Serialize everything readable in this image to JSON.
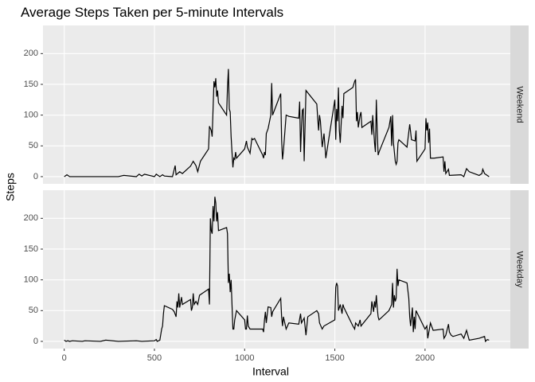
{
  "chart_data": {
    "type": "line",
    "title": "Average Steps Taken per 5-minute Intervals",
    "x_label": "Interval",
    "y_label": "Steps",
    "xlim": [
      -117.75,
      2472.75
    ],
    "xticks": [
      0,
      500,
      1000,
      1500,
      2000
    ],
    "ylim": [
      -11.7,
      245.7
    ],
    "yticks": [
      0,
      50,
      100,
      150,
      200
    ],
    "grid": true,
    "color": "#000000",
    "panels": [
      {
        "label": "Weekend",
        "x": [
          0,
          15,
          30,
          100,
          200,
          300,
          330,
          400,
          415,
          430,
          445,
          500,
          510,
          530,
          545,
          555,
          600,
          615,
          620,
          640,
          655,
          700,
          715,
          730,
          740,
          755,
          800,
          805,
          815,
          820,
          830,
          835,
          840,
          845,
          850,
          855,
          900,
          905,
          910,
          915,
          920,
          925,
          935,
          940,
          945,
          950,
          955,
          1000,
          1010,
          1015,
          1030,
          1040,
          1045,
          1055,
          1100,
          1105,
          1110,
          1115,
          1120,
          1130,
          1145,
          1150,
          1155,
          1200,
          1205,
          1210,
          1215,
          1230,
          1245,
          1300,
          1305,
          1310,
          1315,
          1320,
          1325,
          1330,
          1340,
          1400,
          1405,
          1410,
          1415,
          1420,
          1430,
          1440,
          1450,
          1500,
          1505,
          1510,
          1515,
          1520,
          1525,
          1530,
          1540,
          1545,
          1550,
          1600,
          1610,
          1615,
          1620,
          1625,
          1630,
          1640,
          1645,
          1650,
          1700,
          1705,
          1710,
          1720,
          1725,
          1730,
          1735,
          1740,
          1745,
          1800,
          1810,
          1815,
          1820,
          1825,
          1835,
          1840,
          1845,
          1850,
          1855,
          1900,
          1915,
          1925,
          1945,
          1950,
          1955,
          2000,
          2005,
          2010,
          2015,
          2020,
          2025,
          2030,
          2045,
          2050,
          2100,
          2105,
          2110,
          2115,
          2130,
          2135,
          2200,
          2215,
          2230,
          2245,
          2300,
          2315,
          2320,
          2330,
          2355
        ],
        "values": [
          0,
          3,
          0,
          0,
          0,
          0,
          2,
          0,
          4,
          1,
          4,
          0,
          4,
          0,
          3,
          1,
          0,
          18,
          3,
          8,
          5,
          17,
          25,
          18,
          8,
          25,
          45,
          82,
          75,
          65,
          155,
          145,
          160,
          130,
          140,
          120,
          100,
          145,
          175,
          110,
          105,
          65,
          15,
          30,
          28,
          40,
          30,
          45,
          58,
          48,
          38,
          62,
          60,
          62,
          35,
          30,
          40,
          35,
          70,
          78,
          100,
          152,
          100,
          135,
          60,
          28,
          42,
          100,
          98,
          95,
          122,
          40,
          80,
          108,
          110,
          25,
          140,
          118,
          95,
          75,
          100,
          90,
          48,
          70,
          30,
          125,
          60,
          110,
          90,
          145,
          75,
          55,
          115,
          95,
          135,
          145,
          155,
          158,
          90,
          105,
          80,
          100,
          105,
          80,
          90,
          68,
          100,
          55,
          40,
          125,
          75,
          35,
          40,
          80,
          98,
          50,
          100,
          55,
          25,
          20,
          25,
          55,
          60,
          48,
          85,
          60,
          58,
          75,
          25,
          45,
          95,
          75,
          88,
          55,
          78,
          30,
          30,
          30,
          32,
          8,
          25,
          5,
          12,
          2,
          3,
          0,
          13,
          8,
          2,
          5,
          12,
          5,
          0
        ]
      },
      {
        "label": "Weekday",
        "x": [
          0,
          10,
          20,
          30,
          45,
          100,
          115,
          200,
          230,
          300,
          400,
          430,
          500,
          510,
          515,
          530,
          540,
          545,
          550,
          555,
          600,
          610,
          620,
          625,
          630,
          635,
          640,
          650,
          655,
          700,
          705,
          710,
          715,
          720,
          730,
          740,
          750,
          800,
          805,
          810,
          815,
          820,
          825,
          830,
          835,
          840,
          845,
          850,
          855,
          900,
          905,
          910,
          915,
          920,
          925,
          935,
          940,
          945,
          955,
          1000,
          1005,
          1010,
          1015,
          1020,
          1030,
          1100,
          1105,
          1110,
          1115,
          1120,
          1130,
          1145,
          1150,
          1155,
          1200,
          1205,
          1210,
          1215,
          1230,
          1245,
          1300,
          1310,
          1315,
          1330,
          1340,
          1350,
          1400,
          1410,
          1415,
          1430,
          1440,
          1500,
          1505,
          1510,
          1515,
          1520,
          1530,
          1540,
          1545,
          1550,
          1600,
          1610,
          1615,
          1630,
          1640,
          1645,
          1700,
          1705,
          1715,
          1720,
          1725,
          1730,
          1735,
          1740,
          1745,
          1800,
          1815,
          1820,
          1825,
          1830,
          1835,
          1840,
          1845,
          1850,
          1855,
          1900,
          1910,
          1915,
          1920,
          1930,
          1935,
          1940,
          1945,
          1950,
          2000,
          2010,
          2015,
          2030,
          2045,
          2100,
          2105,
          2115,
          2130,
          2135,
          2145,
          2155,
          2200,
          2215,
          2230,
          2245,
          2300,
          2330,
          2335,
          2345,
          2355
        ],
        "values": [
          2,
          0,
          1,
          0,
          1,
          0,
          1,
          0,
          2,
          0,
          1,
          0,
          1,
          3,
          0,
          2,
          20,
          25,
          45,
          58,
          52,
          48,
          40,
          65,
          55,
          78,
          55,
          72,
          60,
          68,
          50,
          55,
          78,
          60,
          65,
          60,
          75,
          85,
          60,
          200,
          180,
          175,
          220,
          195,
          235,
          225,
          195,
          210,
          180,
          185,
          175,
          95,
          110,
          80,
          100,
          20,
          20,
          35,
          50,
          35,
          20,
          20,
          42,
          25,
          20,
          20,
          15,
          35,
          48,
          30,
          56,
          55,
          40,
          48,
          70,
          40,
          25,
          40,
          20,
          30,
          28,
          45,
          30,
          38,
          10,
          40,
          50,
          45,
          30,
          20,
          25,
          35,
          88,
          95,
          90,
          50,
          60,
          45,
          60,
          55,
          25,
          20,
          30,
          25,
          35,
          25,
          45,
          65,
          48,
          65,
          55,
          75,
          55,
          40,
          35,
          50,
          60,
          95,
          55,
          75,
          65,
          70,
          118,
          90,
          100,
          95,
          70,
          40,
          25,
          55,
          15,
          40,
          20,
          50,
          20,
          25,
          5,
          30,
          18,
          20,
          5,
          10,
          28,
          15,
          10,
          8,
          12,
          5,
          18,
          2,
          5,
          8,
          0,
          3,
          2
        ]
      }
    ]
  }
}
